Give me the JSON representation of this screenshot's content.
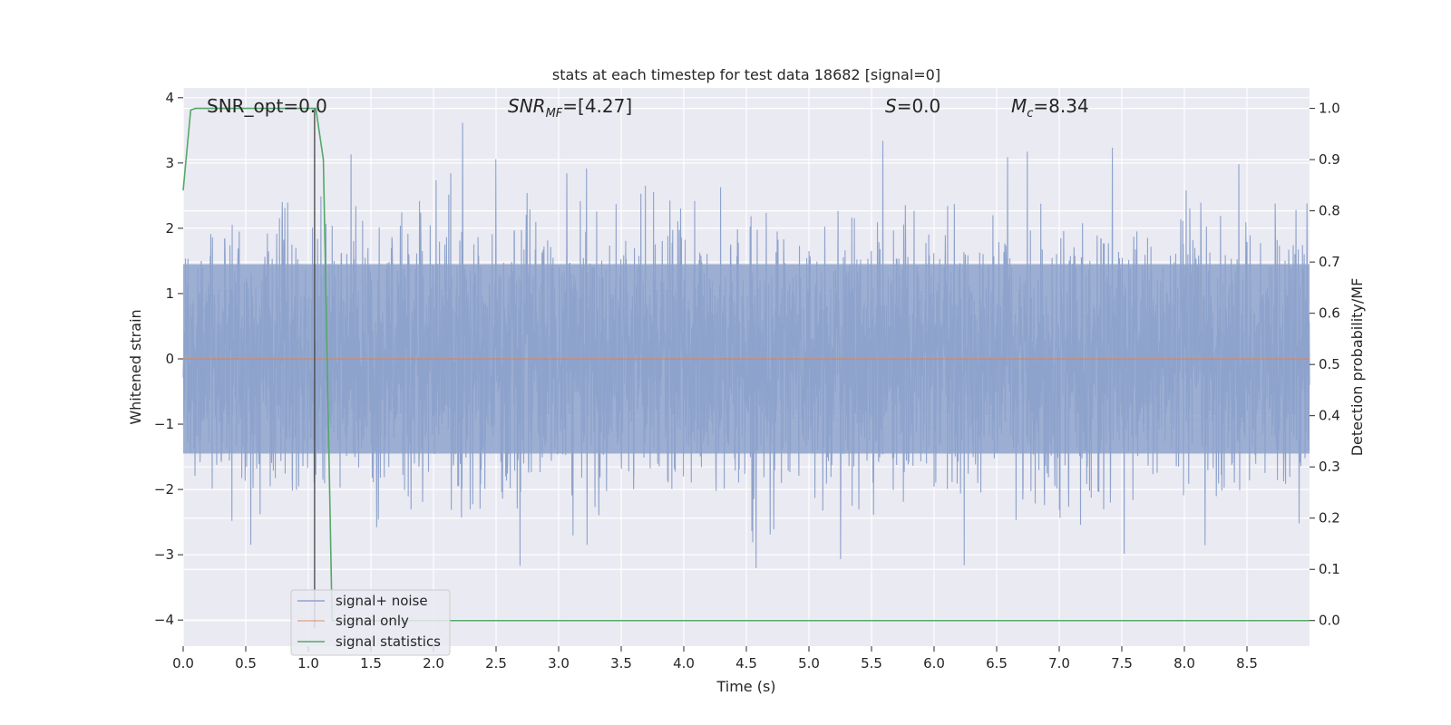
{
  "chart_data": {
    "type": "line",
    "title": "stats at each timestep for test data 18682 [signal=0]",
    "xlabel": "Time (s)",
    "ylabel": "Whitened strain",
    "ylabel_right": "Detection probability/MF",
    "xlim": [
      0,
      9.0
    ],
    "ylim": [
      -4.4,
      4.15
    ],
    "ylim_right": [
      -0.05,
      1.04
    ],
    "x_ticks": [
      "0.0",
      "0.5",
      "1.0",
      "1.5",
      "2.0",
      "2.5",
      "3.0",
      "3.5",
      "4.0",
      "4.5",
      "5.0",
      "5.5",
      "6.0",
      "6.5",
      "7.0",
      "7.5",
      "8.0",
      "8.5"
    ],
    "y_ticks": [
      "4",
      "3",
      "2",
      "1",
      "0",
      "−1",
      "−2",
      "−3",
      "−4"
    ],
    "y_ticks_right": [
      "1.0",
      "0.9",
      "0.8",
      "0.7",
      "0.6",
      "0.5",
      "0.4",
      "0.3",
      "0.2",
      "0.1",
      "0.0"
    ],
    "grid": true,
    "legend_position": "lower-left",
    "colors": {
      "noise": "#8ea3cc",
      "signal": "#dd8452",
      "stats": "#55a868",
      "marker": "#444444",
      "background": "#eaeaf2",
      "grid": "#ffffff"
    },
    "annotations": {
      "snr_opt": "SNR_opt=0.0",
      "snr_mf_prefix": "SNR",
      "snr_mf_sub": "MF",
      "snr_mf_value": "=[4.27]",
      "s_label": "S",
      "s_value": "=0.0",
      "mc_label": "M",
      "mc_sub": "c",
      "mc_value": "=8.34"
    },
    "series": [
      {
        "name": "signal+ noise",
        "axis": "left",
        "description_of_values": "dense whitened noise, roughly between -3.6 and 3.8"
      },
      {
        "name": "signal only",
        "axis": "left",
        "x": [
          0,
          9.0
        ],
        "y": [
          0,
          0
        ]
      },
      {
        "name": "signal statistics",
        "axis": "right",
        "x": [
          0,
          0.06,
          0.1,
          0.2,
          0.5,
          0.8,
          1.0,
          1.06,
          1.12,
          1.19,
          1.25,
          9.0
        ],
        "y": [
          0.84,
          0.997,
          1.0,
          1.0,
          1.0,
          1.0,
          1.0,
          1.0,
          0.9,
          0.0,
          0.0,
          0.0
        ]
      }
    ],
    "marker_x": 1.05
  }
}
